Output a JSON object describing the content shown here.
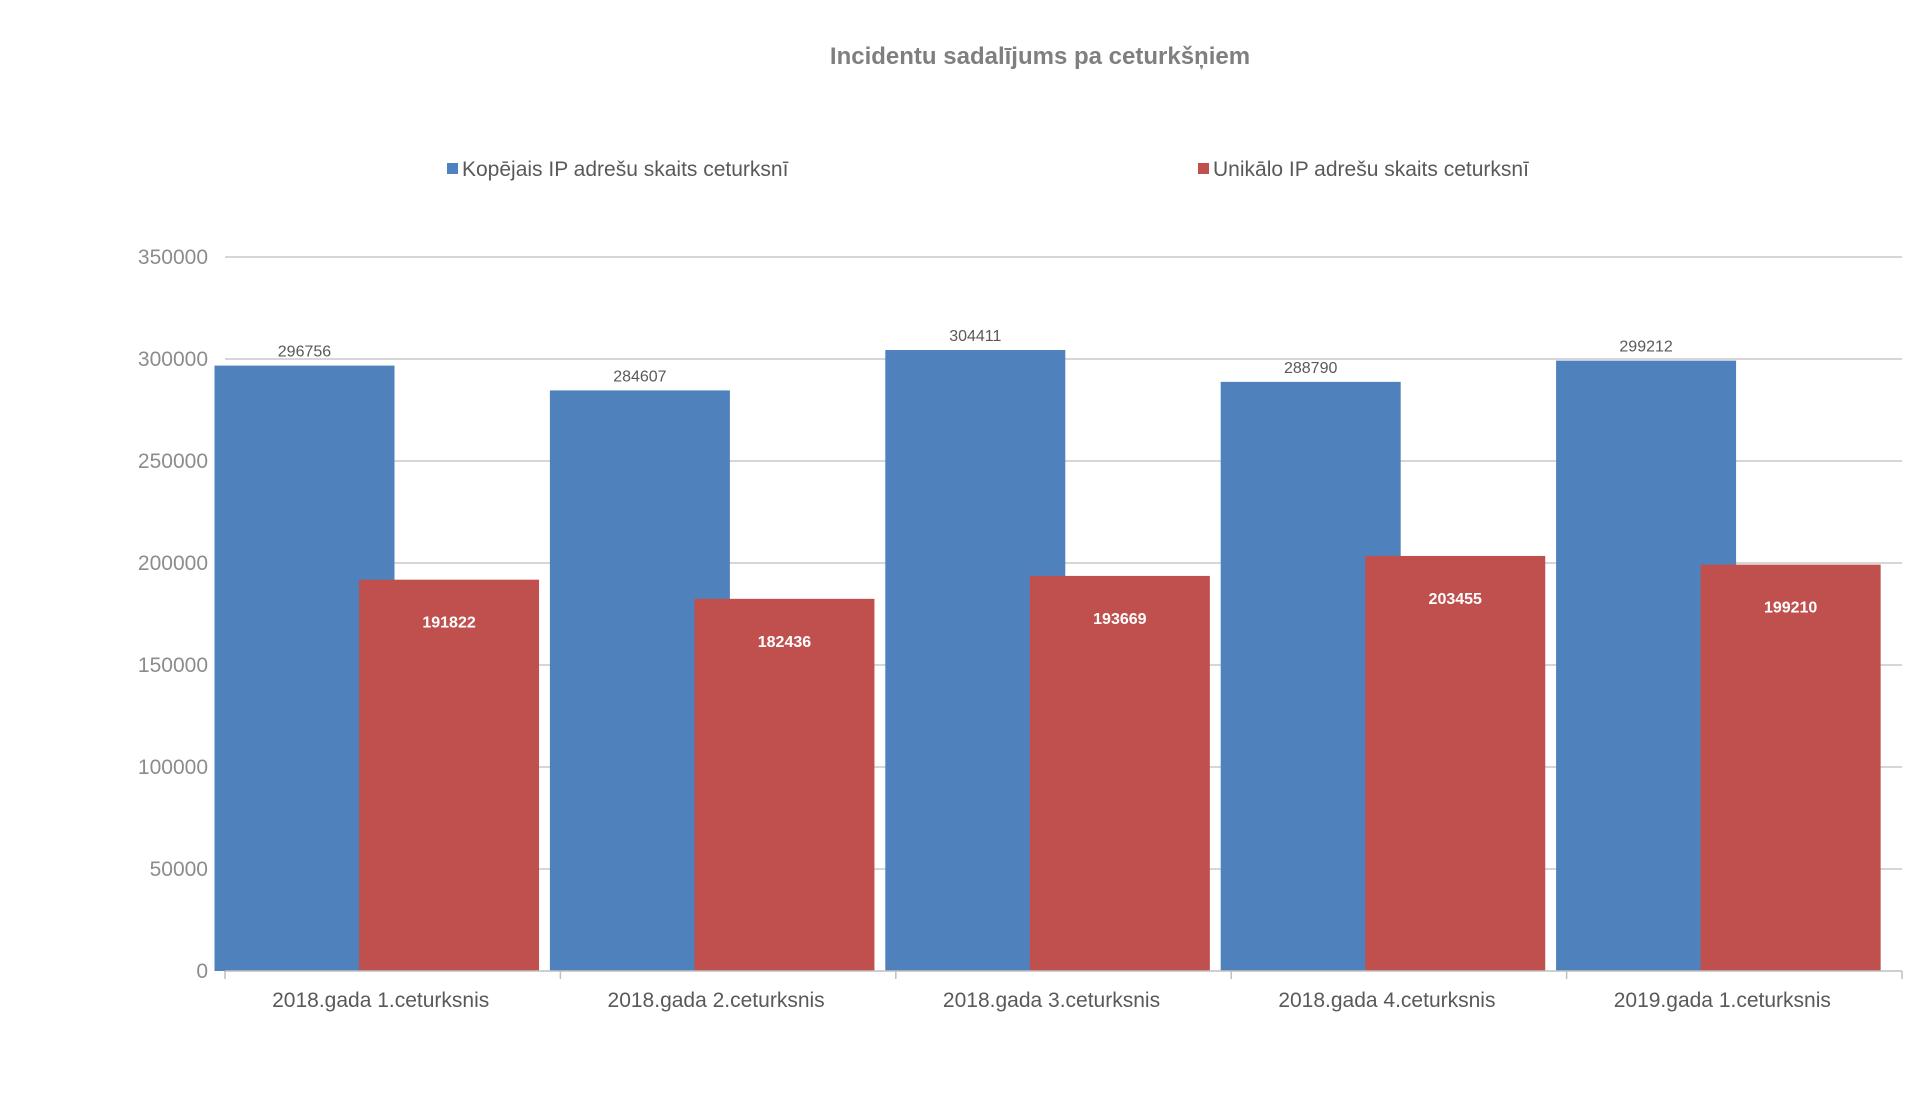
{
  "chart_data": {
    "type": "bar",
    "title": "Incidentu sadalījums pa ceturkšņiem",
    "categories": [
      "2018.gada 1.ceturksnis",
      "2018.gada 2.ceturksnis",
      "2018.gada 3.ceturksnis",
      "2018.gada 4.ceturksnis",
      "2019.gada 1.ceturksnis"
    ],
    "series": [
      {
        "name": "Kopējais IP adrešu skaits ceturksnī",
        "color": "#4f81bd",
        "values": [
          296756,
          284607,
          304411,
          288790,
          299212
        ]
      },
      {
        "name": "Unikālo IP adrešu skaits ceturksnī",
        "color": "#c0504d",
        "values": [
          191822,
          182436,
          193669,
          203455,
          199210
        ]
      }
    ],
    "ylim": [
      0,
      350000
    ],
    "yticks": [
      "0",
      "50000",
      "100000",
      "150000",
      "200000",
      "250000",
      "300000",
      "350000"
    ],
    "xlabel": "",
    "ylabel": "",
    "grid": true,
    "legend_position": "top",
    "bars_overlap": true
  }
}
